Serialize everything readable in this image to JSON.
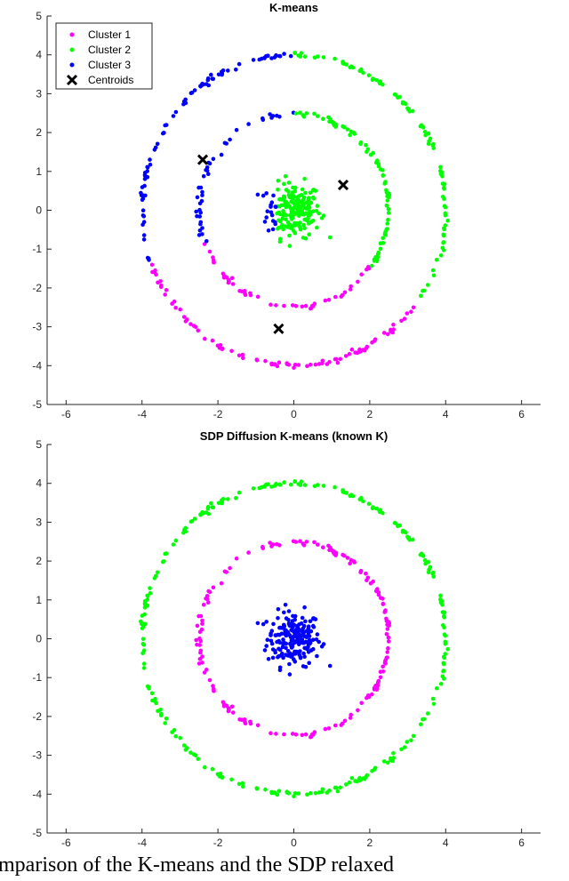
{
  "chart_data": [
    {
      "type": "scatter",
      "title": "K-means",
      "xlim": [
        -6.5,
        6.5
      ],
      "ylim": [
        -5,
        5
      ],
      "xticks": [
        -6,
        -4,
        -2,
        0,
        2,
        4,
        6
      ],
      "yticks": [
        -5,
        -4,
        -3,
        -2,
        -1,
        0,
        1,
        2,
        3,
        4,
        5
      ],
      "grid": false,
      "legend_position": "top-left",
      "series": [
        {
          "name": "Cluster 1",
          "color": "#ff00ff",
          "marker": "dot"
        },
        {
          "name": "Cluster 2",
          "color": "#00ff00",
          "marker": "dot"
        },
        {
          "name": "Cluster 3",
          "color": "#0000ff",
          "marker": "dot"
        },
        {
          "name": "Centroids",
          "color": "#000000",
          "marker": "x",
          "points": [
            [
              -2.4,
              1.3
            ],
            [
              1.3,
              0.65
            ],
            [
              -0.4,
              -3.05
            ]
          ]
        }
      ],
      "data_structure": {
        "inner_blob": {
          "center": [
            0,
            0
          ],
          "spread": 0.9
        },
        "inner_ring_radius": 2.5,
        "outer_ring_radius": 4.0
      },
      "assignment": {
        "cluster1": "lower arc of both rings (angles ~200°–325°)",
        "cluster2": "right side of both rings plus most of inner blob",
        "cluster3": "left side of both rings plus left part of inner blob"
      }
    },
    {
      "type": "scatter",
      "title": "SDP Diffusion K-means (known K)",
      "xlim": [
        -6.5,
        6.5
      ],
      "ylim": [
        -5,
        5
      ],
      "xticks": [
        -6,
        -4,
        -2,
        0,
        2,
        4,
        6
      ],
      "yticks": [
        -5,
        -4,
        -3,
        -2,
        -1,
        0,
        1,
        2,
        3,
        4,
        5
      ],
      "grid": false,
      "series": [
        {
          "name": "",
          "color": "#ff00ff",
          "marker": "dot",
          "group": "inner ring (radius 2.5)"
        },
        {
          "name": "",
          "color": "#00ff00",
          "marker": "dot",
          "group": "outer ring (radius 4)"
        },
        {
          "name": "",
          "color": "#0000ff",
          "marker": "dot",
          "group": "central blob"
        }
      ]
    }
  ],
  "caption": {
    "text": "omparison of the K-means and the SDP relaxed"
  }
}
